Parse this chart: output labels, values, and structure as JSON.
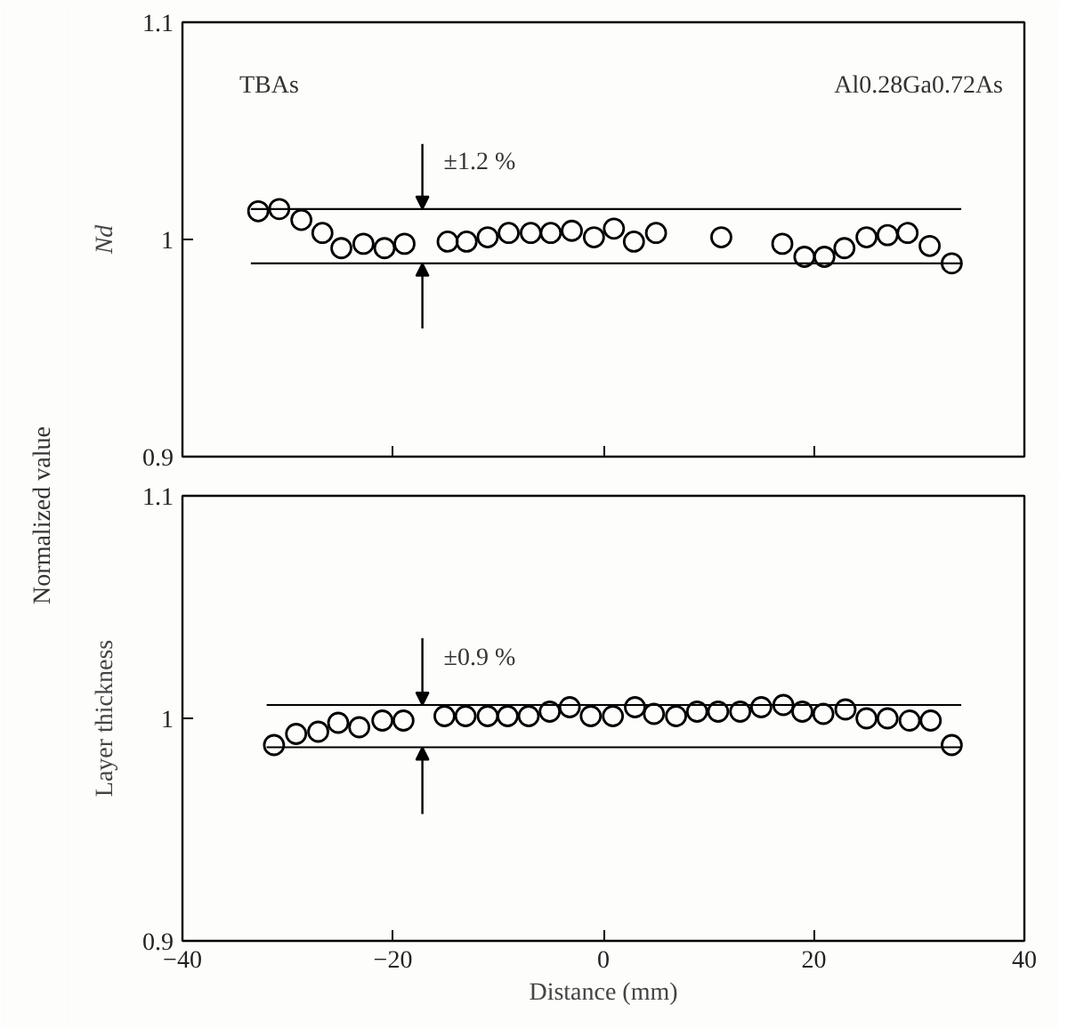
{
  "chart_data": [
    {
      "type": "scatter",
      "ylabel": "Nd",
      "marker": "circle",
      "grid": false,
      "tick_labels": "y",
      "xlim": [
        -40,
        40
      ],
      "xticks": [
        -40,
        -20,
        0,
        20,
        40
      ],
      "ylim": [
        0.9,
        1.1
      ],
      "yticks": [
        0.9,
        1,
        1.1
      ],
      "series": [
        {
          "color": "#000000",
          "x": [
            -32.8,
            -30.8,
            -28.7,
            -26.7,
            -24.9,
            -22.8,
            -20.8,
            -18.9,
            -14.8,
            -13.0,
            -11.0,
            -9.0,
            -6.9,
            -5.0,
            -3.0,
            -0.9,
            1.0,
            2.9,
            5.0,
            11.2,
            17.0,
            19.1,
            21.0,
            22.9,
            25.0,
            27.0,
            28.9,
            31.0,
            33.1
          ],
          "values": [
            1.013,
            1.014,
            1.009,
            1.003,
            0.996,
            0.998,
            0.996,
            0.998,
            0.999,
            0.999,
            1.001,
            1.003,
            1.003,
            1.003,
            1.004,
            1.001,
            1.005,
            0.999,
            1.003,
            1.001,
            0.998,
            0.992,
            0.992,
            0.996,
            1.001,
            1.002,
            1.003,
            0.997,
            0.989
          ]
        }
      ],
      "ref_lines": [
        {
          "axis": "y",
          "value": 1.014
        },
        {
          "axis": "y",
          "value": 0.989
        }
      ],
      "annotations": [
        "TBAs",
        "Al0.28Ga0.72As",
        {
          "text": "±1.2 %",
          "x": -17.2,
          "y": 1.014
        },
        "Normalized value"
      ]
    },
    {
      "type": "scatter",
      "xlabel": "Distance (mm)",
      "ylabel": "Layer thickness",
      "marker": "circle",
      "grid": false,
      "xlim": [
        -40,
        40
      ],
      "xticks": [
        -40,
        -20,
        0,
        20,
        40
      ],
      "ylim": [
        0.9,
        1.1
      ],
      "yticks": [
        0.9,
        1,
        1.1
      ],
      "series": [
        {
          "color": "#000000",
          "x": [
            -31.3,
            -29.2,
            -27.1,
            -25.2,
            -23.2,
            -21.0,
            -19.0,
            -15.1,
            -13.1,
            -11.0,
            -9.1,
            -7.1,
            -5.1,
            -3.2,
            -1.2,
            0.9,
            3.0,
            4.8,
            6.9,
            8.9,
            10.9,
            13.0,
            15.0,
            17.1,
            18.9,
            20.9,
            23.0,
            25.0,
            27.0,
            29.1,
            31.1,
            33.1
          ],
          "values": [
            0.988,
            0.993,
            0.994,
            0.998,
            0.996,
            0.999,
            0.999,
            1.001,
            1.001,
            1.001,
            1.001,
            1.001,
            1.003,
            1.005,
            1.001,
            1.001,
            1.005,
            1.002,
            1.001,
            1.003,
            1.003,
            1.003,
            1.005,
            1.006,
            1.003,
            1.002,
            1.004,
            1.0,
            1.0,
            0.999,
            0.999,
            0.988
          ]
        }
      ],
      "ref_lines": [
        {
          "axis": "y",
          "value": 1.006
        },
        {
          "axis": "y",
          "value": 0.987
        }
      ],
      "annotations": [
        {
          "text": "±0.9 %",
          "x": -17.2,
          "y": 1.006
        }
      ]
    }
  ]
}
